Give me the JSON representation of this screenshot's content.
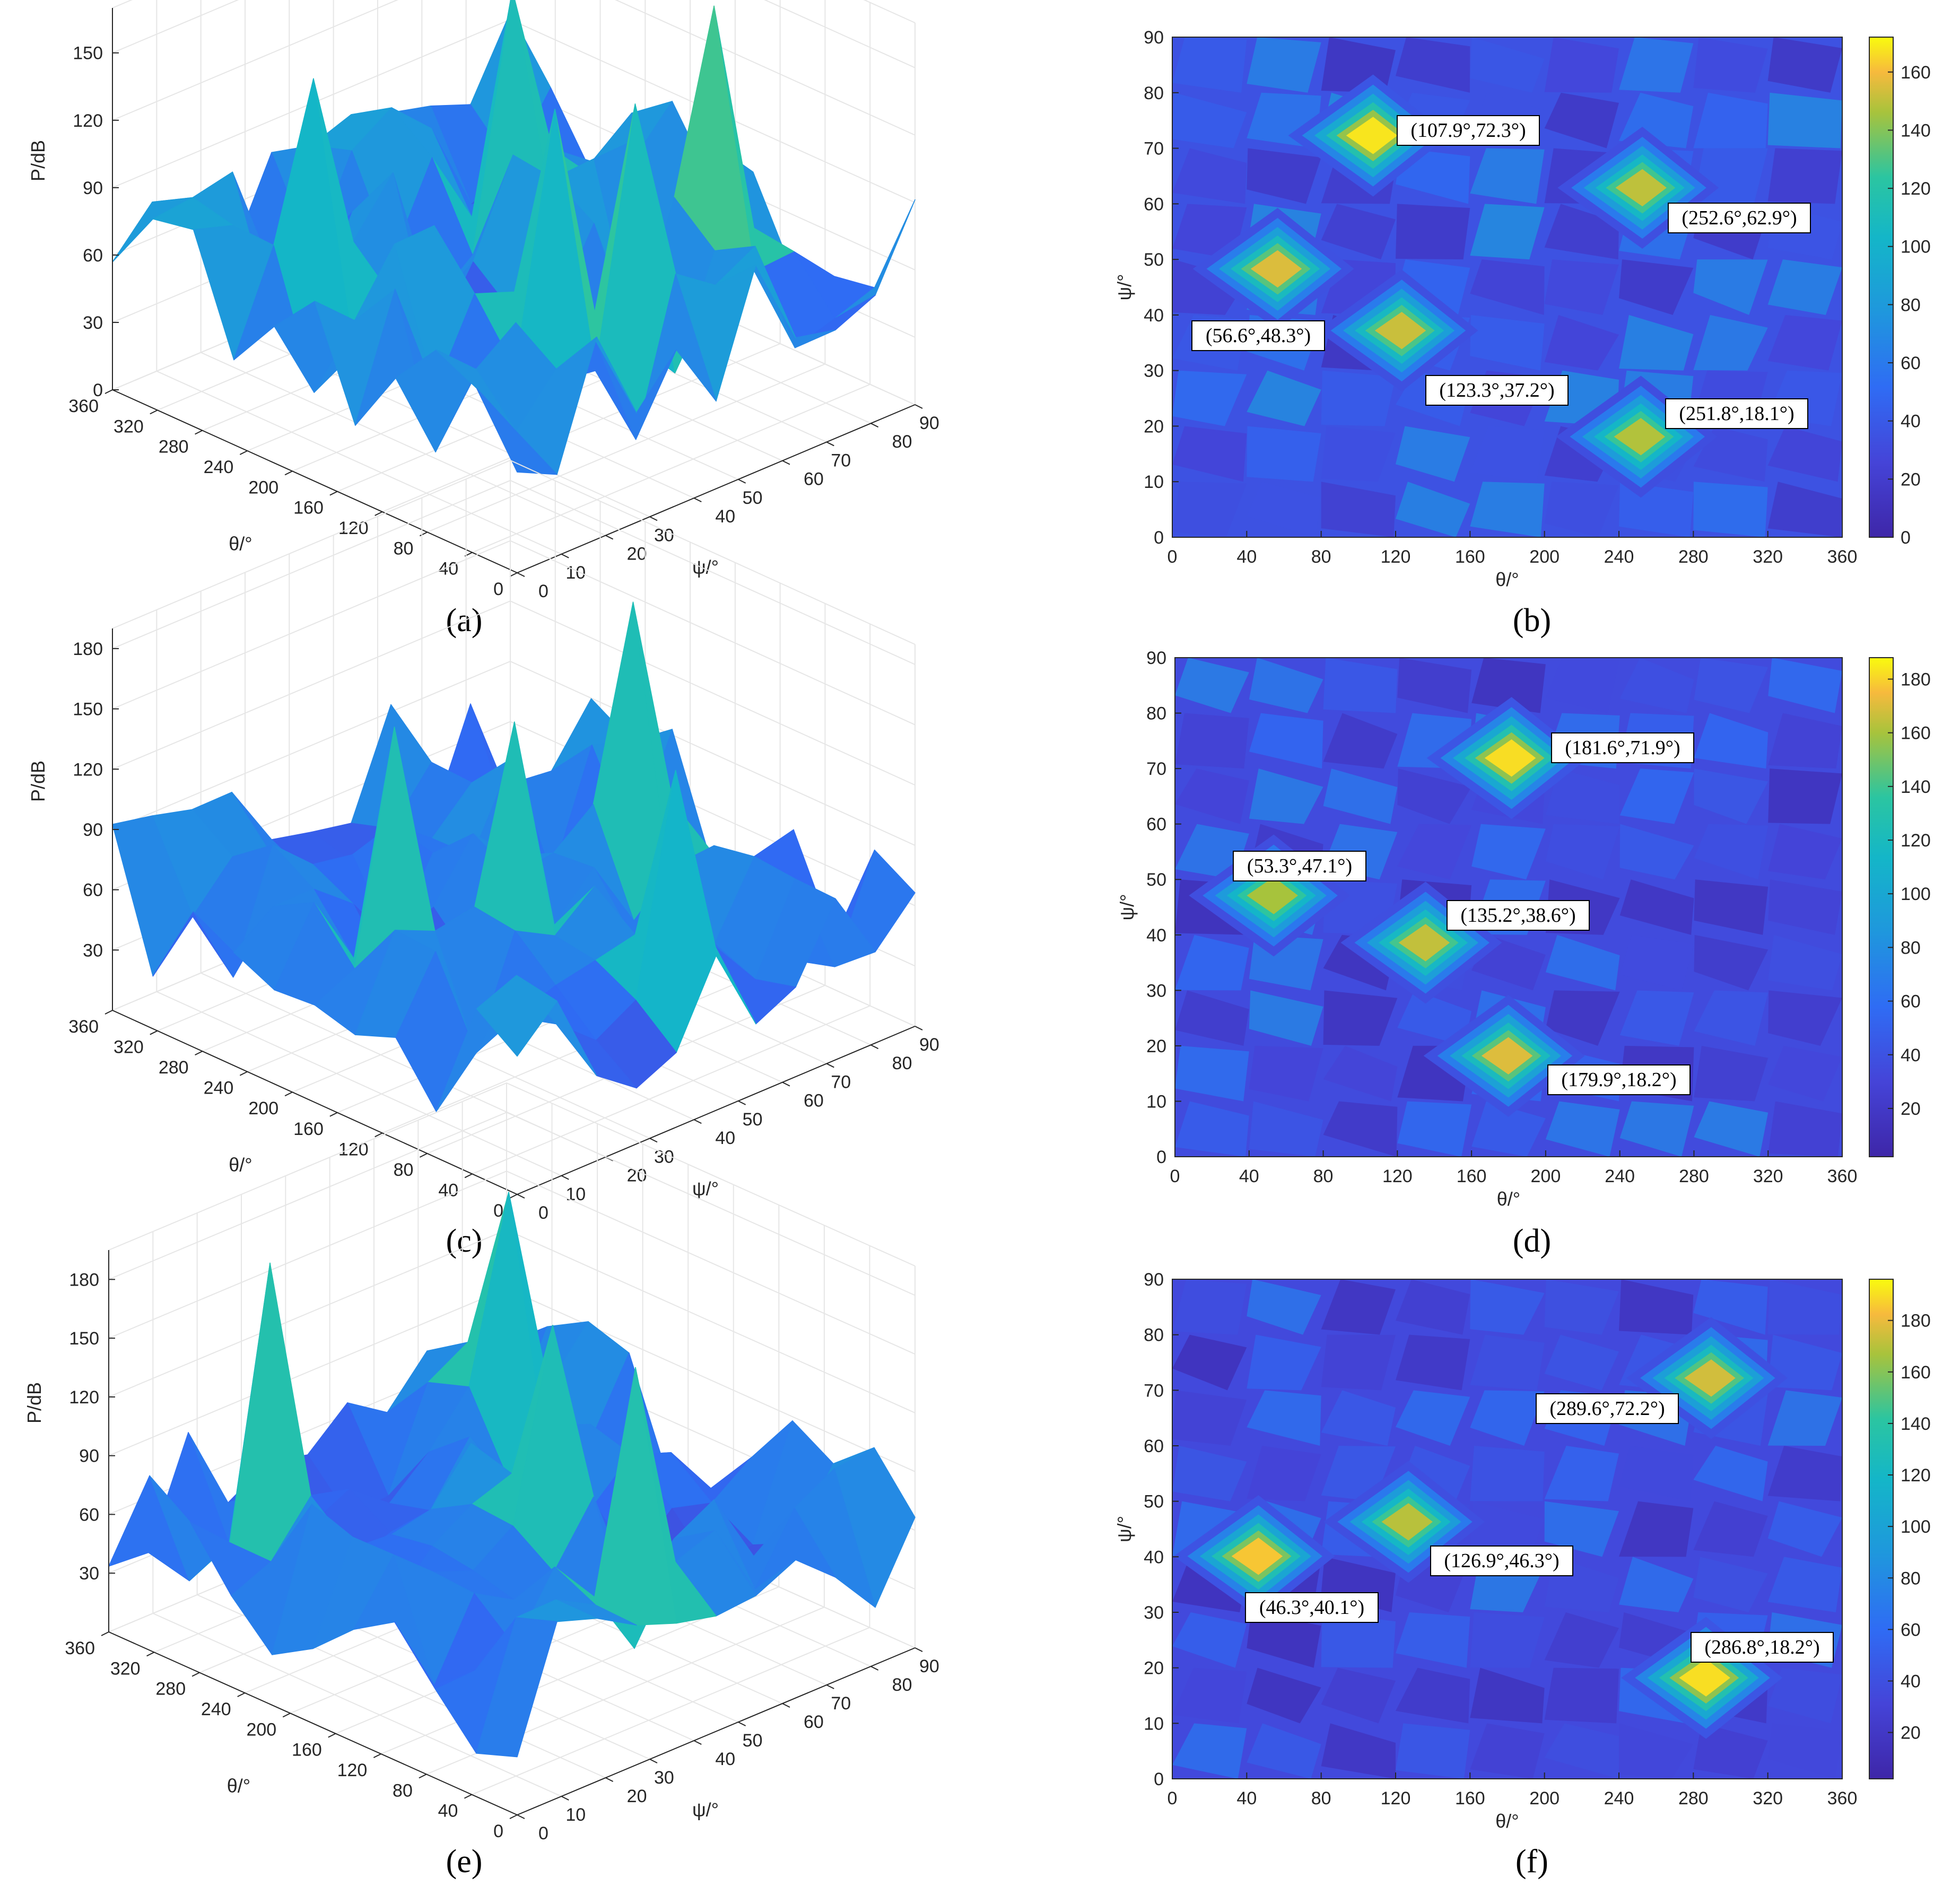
{
  "figure": {
    "captions": [
      "(a)",
      "(b)",
      "(c)",
      "(d)",
      "(e)",
      "(f)"
    ]
  },
  "colors": {
    "low": "#3e26a8",
    "mid": "#1fa4d9",
    "teal": "#2bc5a1",
    "high": "#f9d92b",
    "frame": "#262626",
    "grid": "#e6e6e6"
  },
  "chart_data": [
    {
      "id": "a",
      "type": "surface",
      "caption": "(a)",
      "xlabel": "θ/°",
      "ylabel": "ψ/°",
      "zlabel": "P/dB",
      "xticks": [
        "360",
        "320",
        "280",
        "240",
        "200",
        "160",
        "120",
        "80",
        "40",
        "0"
      ],
      "yticks": [
        "0",
        "10",
        "20",
        "30",
        "40",
        "50",
        "60",
        "70",
        "80",
        "90"
      ],
      "zticks": [
        "0",
        "30",
        "60",
        "90",
        "120",
        "150"
      ],
      "zlim": [
        0,
        170
      ],
      "peaks": [
        {
          "theta": 107.9,
          "psi": 72.3,
          "p": 168
        },
        {
          "theta": 252.6,
          "psi": 62.9,
          "p": 150
        },
        {
          "theta": 56.6,
          "psi": 48.3,
          "p": 155
        },
        {
          "theta": 123.3,
          "psi": 37.2,
          "p": 152
        },
        {
          "theta": 251.8,
          "psi": 18.1,
          "p": 148
        }
      ]
    },
    {
      "id": "b",
      "type": "heatmap",
      "caption": "(b)",
      "xlabel": "θ/°",
      "ylabel": "ψ/°",
      "xticks": [
        "0",
        "40",
        "80",
        "120",
        "160",
        "200",
        "240",
        "280",
        "320",
        "360"
      ],
      "yticks": [
        "0",
        "10",
        "20",
        "30",
        "40",
        "50",
        "60",
        "70",
        "80",
        "90"
      ],
      "cbticks": [
        "0",
        "20",
        "40",
        "60",
        "80",
        "100",
        "120",
        "140",
        "160"
      ],
      "cbrange": [
        0,
        172
      ],
      "annotations": [
        "(107.9°,72.3°)",
        "(252.6°,62.9°)",
        "(56.6°,48.3°)",
        "(123.3°,37.2°)",
        "(251.8°,18.1°)"
      ],
      "peaks": [
        {
          "theta": 107.9,
          "psi": 72.3,
          "p": 168
        },
        {
          "theta": 252.6,
          "psi": 62.9,
          "p": 150
        },
        {
          "theta": 56.6,
          "psi": 48.3,
          "p": 155
        },
        {
          "theta": 123.3,
          "psi": 37.2,
          "p": 152
        },
        {
          "theta": 251.8,
          "psi": 18.1,
          "p": 148
        }
      ]
    },
    {
      "id": "c",
      "type": "surface",
      "caption": "(c)",
      "xlabel": "θ/°",
      "ylabel": "ψ/°",
      "zlabel": "P/dB",
      "xticks": [
        "360",
        "320",
        "280",
        "240",
        "200",
        "160",
        "120",
        "80",
        "40",
        "0"
      ],
      "yticks": [
        "0",
        "10",
        "20",
        "30",
        "40",
        "50",
        "60",
        "70",
        "80",
        "90"
      ],
      "zticks": [
        "30",
        "60",
        "90",
        "120",
        "150",
        "180"
      ],
      "zlim": [
        0,
        190
      ],
      "peaks": [
        {
          "theta": 181.6,
          "psi": 71.9,
          "p": 182
        },
        {
          "theta": 53.3,
          "psi": 47.1,
          "p": 160
        },
        {
          "theta": 135.2,
          "psi": 38.6,
          "p": 165
        },
        {
          "theta": 179.9,
          "psi": 18.2,
          "p": 170
        }
      ]
    },
    {
      "id": "d",
      "type": "heatmap",
      "caption": "(d)",
      "xlabel": "θ/°",
      "ylabel": "ψ/°",
      "xticks": [
        "0",
        "40",
        "80",
        "120",
        "160",
        "200",
        "240",
        "280",
        "320",
        "360"
      ],
      "yticks": [
        "0",
        "10",
        "20",
        "30",
        "40",
        "50",
        "60",
        "70",
        "80",
        "90"
      ],
      "cbticks": [
        "20",
        "40",
        "60",
        "80",
        "100",
        "120",
        "140",
        "160",
        "180"
      ],
      "cbrange": [
        2,
        188
      ],
      "annotations": [
        "(181.6°,71.9°)",
        "(53.3°,47.1°)",
        "(135.2°,38.6°)",
        "(179.9°,18.2°)"
      ],
      "peaks": [
        {
          "theta": 181.6,
          "psi": 71.9,
          "p": 182
        },
        {
          "theta": 53.3,
          "psi": 47.1,
          "p": 160
        },
        {
          "theta": 135.2,
          "psi": 38.6,
          "p": 165
        },
        {
          "theta": 179.9,
          "psi": 18.2,
          "p": 170
        }
      ]
    },
    {
      "id": "e",
      "type": "surface",
      "caption": "(e)",
      "xlabel": "θ/°",
      "ylabel": "ψ/°",
      "zlabel": "P/dB",
      "xticks": [
        "360",
        "320",
        "280",
        "240",
        "200",
        "160",
        "120",
        "80",
        "40",
        "0"
      ],
      "yticks": [
        "0",
        "10",
        "20",
        "30",
        "40",
        "50",
        "60",
        "70",
        "80",
        "90"
      ],
      "zticks": [
        "30",
        "60",
        "90",
        "120",
        "150",
        "180"
      ],
      "zlim": [
        0,
        195
      ],
      "peaks": [
        {
          "theta": 289.6,
          "psi": 72.2,
          "p": 175
        },
        {
          "theta": 46.3,
          "psi": 40.1,
          "p": 185
        },
        {
          "theta": 126.9,
          "psi": 46.3,
          "p": 170
        },
        {
          "theta": 286.8,
          "psi": 18.2,
          "p": 190
        }
      ]
    },
    {
      "id": "f",
      "type": "heatmap",
      "caption": "(f)",
      "xlabel": "θ/°",
      "ylabel": "ψ/°",
      "xticks": [
        "0",
        "40",
        "80",
        "120",
        "160",
        "200",
        "240",
        "280",
        "320",
        "360"
      ],
      "yticks": [
        "0",
        "10",
        "20",
        "30",
        "40",
        "50",
        "60",
        "70",
        "80",
        "90"
      ],
      "cbticks": [
        "20",
        "40",
        "60",
        "80",
        "100",
        "120",
        "140",
        "160",
        "180"
      ],
      "cbrange": [
        2,
        196
      ],
      "annotations": [
        "(289.6°,72.2°)",
        "(126.9°,46.3°)",
        "(46.3°,40.1°)",
        "(286.8°,18.2°)"
      ],
      "peaks": [
        {
          "theta": 289.6,
          "psi": 72.2,
          "p": 175
        },
        {
          "theta": 126.9,
          "psi": 46.3,
          "p": 170
        },
        {
          "theta": 46.3,
          "psi": 40.1,
          "p": 185
        },
        {
          "theta": 286.8,
          "psi": 18.2,
          "p": 190
        }
      ]
    }
  ]
}
